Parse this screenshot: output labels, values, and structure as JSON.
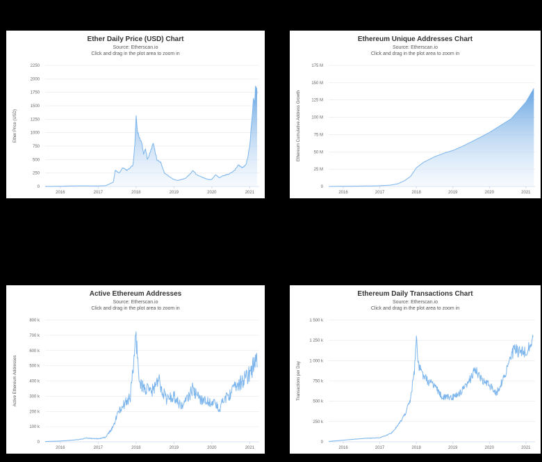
{
  "headings": [
    "",
    "",
    "",
    ""
  ],
  "chart_data": [
    {
      "type": "line",
      "title": "Ether Daily Price (USD) Chart",
      "subtitle": "Source: Etherscan.io",
      "note": "Click and drag in the plot area to zoom in",
      "ylabel": "Ether Price (USD)",
      "ylim": [
        0,
        2250
      ],
      "xlim": [
        2015.6,
        2021.25
      ],
      "yticks": [
        0,
        250,
        500,
        750,
        1000,
        1250,
        1500,
        1750,
        2000,
        2250
      ],
      "ytick_labels": [
        "0",
        "250",
        "500",
        "750",
        "1000",
        "1250",
        "1500",
        "1750",
        "2000",
        "2250"
      ],
      "xticks": [
        2016,
        2017,
        2018,
        2019,
        2020,
        2021
      ],
      "xtick_labels": [
        "2016",
        "2017",
        "2018",
        "2019",
        "2020",
        "2021"
      ],
      "fill": true,
      "noise": 0.03,
      "x": [
        2015.6,
        2016.0,
        2016.3,
        2016.6,
        2017.0,
        2017.2,
        2017.4,
        2017.45,
        2017.55,
        2017.65,
        2017.75,
        2017.85,
        2017.92,
        2017.97,
        2018.0,
        2018.04,
        2018.1,
        2018.15,
        2018.2,
        2018.25,
        2018.3,
        2018.38,
        2018.45,
        2018.55,
        2018.65,
        2018.75,
        2018.85,
        2018.95,
        2019.0,
        2019.1,
        2019.2,
        2019.3,
        2019.45,
        2019.5,
        2019.6,
        2019.75,
        2019.9,
        2020.0,
        2020.1,
        2020.2,
        2020.3,
        2020.45,
        2020.6,
        2020.7,
        2020.8,
        2020.9,
        2020.95,
        2021.0,
        2021.05,
        2021.08,
        2021.1,
        2021.13,
        2021.15,
        2021.18,
        2021.2
      ],
      "y": [
        1,
        3,
        10,
        12,
        10,
        15,
        80,
        300,
        250,
        350,
        300,
        350,
        400,
        800,
        1300,
        1000,
        900,
        800,
        600,
        700,
        500,
        650,
        800,
        500,
        450,
        250,
        200,
        150,
        130,
        110,
        130,
        150,
        250,
        300,
        220,
        170,
        130,
        130,
        220,
        160,
        200,
        230,
        300,
        400,
        350,
        400,
        550,
        750,
        1200,
        1400,
        1700,
        1500,
        1900,
        1800,
        1750
      ]
    },
    {
      "type": "area",
      "title": "Ethereum Unique Addresses Chart",
      "subtitle": "Source: Etherscan.io",
      "note": "Click and drag in the plot area to zoom in",
      "ylabel": "Ethereum Cumulative Address Growth",
      "ylim": [
        0,
        175
      ],
      "xlim": [
        2015.6,
        2021.25
      ],
      "yticks": [
        0,
        25,
        50,
        75,
        100,
        125,
        150,
        175
      ],
      "ytick_labels": [
        "0",
        "25 M",
        "50 M",
        "75 M",
        "100 M",
        "125 M",
        "150 M",
        "175 M"
      ],
      "xticks": [
        2016,
        2017,
        2018,
        2019,
        2020,
        2021
      ],
      "xtick_labels": [
        "2016",
        "2017",
        "2018",
        "2019",
        "2020",
        "2021"
      ],
      "fill": true,
      "noise": 0,
      "x": [
        2015.6,
        2016.0,
        2016.5,
        2017.0,
        2017.3,
        2017.5,
        2017.7,
        2017.85,
        2018.0,
        2018.2,
        2018.5,
        2018.8,
        2019.0,
        2019.3,
        2019.6,
        2020.0,
        2020.3,
        2020.6,
        2021.0,
        2021.22
      ],
      "y": [
        0,
        0.3,
        0.6,
        1,
        2,
        4,
        9,
        15,
        27,
        35,
        43,
        49,
        52,
        59,
        67,
        78,
        88,
        98,
        122,
        142
      ]
    },
    {
      "type": "line",
      "title": "Active Ethereum Addresses",
      "subtitle": "Source: Etherscan.io",
      "note": "Click and drag in the plot area to zoom in",
      "ylabel": "Active Ethereum Addresses",
      "ylim": [
        0,
        800
      ],
      "xlim": [
        2015.6,
        2021.25
      ],
      "yticks": [
        0,
        100,
        200,
        300,
        400,
        500,
        600,
        700,
        800
      ],
      "ytick_labels": [
        "0",
        "100 k",
        "200 k",
        "300 k",
        "400 k",
        "500 k",
        "600 k",
        "700 k",
        "800 k"
      ],
      "xticks": [
        2016,
        2017,
        2018,
        2019,
        2020,
        2021
      ],
      "xtick_labels": [
        "2016",
        "2017",
        "2018",
        "2019",
        "2020",
        "2021"
      ],
      "fill": false,
      "noise": 0.13,
      "x": [
        2015.6,
        2016.0,
        2016.5,
        2016.7,
        2017.0,
        2017.2,
        2017.4,
        2017.5,
        2017.7,
        2017.85,
        2017.95,
        2018.0,
        2018.05,
        2018.1,
        2018.2,
        2018.4,
        2018.6,
        2018.8,
        2019.0,
        2019.2,
        2019.4,
        2019.5,
        2019.6,
        2019.8,
        2020.0,
        2020.1,
        2020.2,
        2020.3,
        2020.5,
        2020.7,
        2020.9,
        2021.0,
        2021.1,
        2021.2
      ],
      "y": [
        2,
        5,
        15,
        25,
        20,
        30,
        100,
        180,
        250,
        300,
        550,
        700,
        500,
        400,
        350,
        330,
        400,
        280,
        300,
        230,
        300,
        350,
        300,
        270,
        260,
        250,
        200,
        280,
        320,
        380,
        420,
        450,
        500,
        530
      ]
    },
    {
      "type": "line",
      "title": "Ethereum Daily Transactions Chart",
      "subtitle": "Source: Etherscan.io",
      "note": "Click and drag in the plot area to zoom in",
      "ylabel": "Transactions per Day",
      "ylim": [
        0,
        1500
      ],
      "xlim": [
        2015.6,
        2021.25
      ],
      "yticks": [
        0,
        250,
        500,
        750,
        1000,
        1250,
        1500
      ],
      "ytick_labels": [
        "0",
        "250 k",
        "500 k",
        "750 k",
        "1 000 k",
        "1 250 k",
        "1 500 k"
      ],
      "xticks": [
        2016,
        2017,
        2018,
        2019,
        2020,
        2021
      ],
      "xtick_labels": [
        "2016",
        "2017",
        "2018",
        "2019",
        "2020",
        "2021"
      ],
      "fill": false,
      "noise": 0.07,
      "x": [
        2015.6,
        2016.0,
        2016.5,
        2017.0,
        2017.3,
        2017.5,
        2017.7,
        2017.85,
        2017.95,
        2018.0,
        2018.05,
        2018.15,
        2018.3,
        2018.5,
        2018.7,
        2018.9,
        2019.0,
        2019.2,
        2019.4,
        2019.5,
        2019.6,
        2019.8,
        2020.0,
        2020.2,
        2020.4,
        2020.6,
        2020.7,
        2020.8,
        2021.0,
        2021.1,
        2021.2
      ],
      "y": [
        5,
        20,
        40,
        50,
        100,
        200,
        350,
        550,
        900,
        1300,
        950,
        850,
        750,
        700,
        550,
        550,
        550,
        600,
        700,
        800,
        900,
        750,
        700,
        600,
        800,
        1050,
        1150,
        1100,
        1100,
        1200,
        1250
      ]
    }
  ]
}
